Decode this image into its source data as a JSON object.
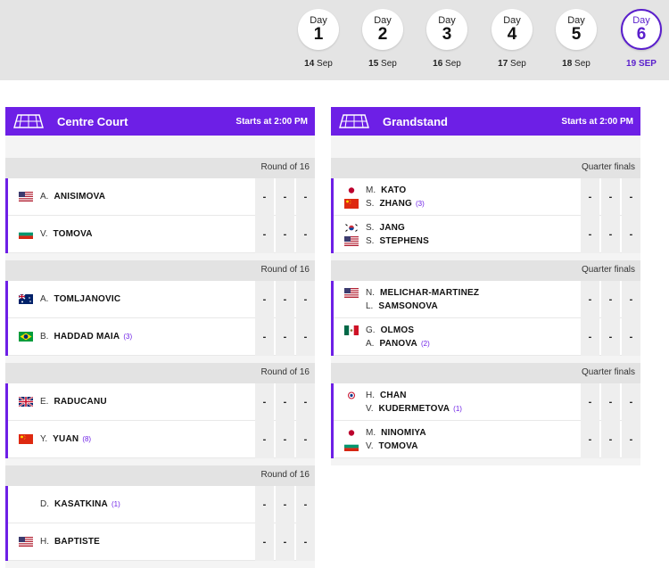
{
  "days": [
    {
      "label": "Day",
      "num": "1",
      "day": "14",
      "month": "Sep",
      "active": false
    },
    {
      "label": "Day",
      "num": "2",
      "day": "15",
      "month": "Sep",
      "active": false
    },
    {
      "label": "Day",
      "num": "3",
      "day": "16",
      "month": "Sep",
      "active": false
    },
    {
      "label": "Day",
      "num": "4",
      "day": "17",
      "month": "Sep",
      "active": false
    },
    {
      "label": "Day",
      "num": "5",
      "day": "18",
      "month": "Sep",
      "active": false
    },
    {
      "label": "Day",
      "num": "6",
      "day": "19",
      "month": "SEP",
      "active": true
    }
  ],
  "courts": [
    {
      "name": "Centre Court",
      "start": "Starts at 2:00 PM",
      "matches": [
        {
          "round": "Round of 16",
          "players": [
            {
              "rows": [
                {
                  "flag": "usa",
                  "init": "A.",
                  "name": "ANISIMOVA",
                  "seed": ""
                }
              ]
            },
            {
              "rows": [
                {
                  "flag": "bulgaria",
                  "init": "V.",
                  "name": "TOMOVA",
                  "seed": ""
                }
              ]
            }
          ],
          "scores": [
            [
              "-",
              "-",
              "-"
            ],
            [
              "-",
              "-",
              "-"
            ]
          ]
        },
        {
          "round": "Round of 16",
          "players": [
            {
              "rows": [
                {
                  "flag": "australia",
                  "init": "A.",
                  "name": "TOMLJANOVIC",
                  "seed": ""
                }
              ]
            },
            {
              "rows": [
                {
                  "flag": "brazil",
                  "init": "B.",
                  "name": "HADDAD MAIA",
                  "seed": "(3)"
                }
              ]
            }
          ],
          "scores": [
            [
              "-",
              "-",
              "-"
            ],
            [
              "-",
              "-",
              "-"
            ]
          ]
        },
        {
          "round": "Round of 16",
          "players": [
            {
              "rows": [
                {
                  "flag": "uk",
                  "init": "E.",
                  "name": "RADUCANU",
                  "seed": ""
                }
              ]
            },
            {
              "rows": [
                {
                  "flag": "china",
                  "init": "Y.",
                  "name": "YUAN",
                  "seed": "(8)"
                }
              ]
            }
          ],
          "scores": [
            [
              "-",
              "-",
              "-"
            ],
            [
              "-",
              "-",
              "-"
            ]
          ]
        },
        {
          "round": "Round of 16",
          "players": [
            {
              "rows": [
                {
                  "flag": "none",
                  "init": "D.",
                  "name": "KASATKINA",
                  "seed": "(1)"
                }
              ]
            },
            {
              "rows": [
                {
                  "flag": "usa",
                  "init": "H.",
                  "name": "BAPTISTE",
                  "seed": ""
                }
              ]
            }
          ],
          "scores": [
            [
              "-",
              "-",
              "-"
            ],
            [
              "-",
              "-",
              "-"
            ]
          ]
        }
      ]
    },
    {
      "name": "Grandstand",
      "start": "Starts at 2:00 PM",
      "matches": [
        {
          "round": "Quarter finals",
          "players": [
            {
              "rows": [
                {
                  "flag": "japan",
                  "init": "M.",
                  "name": "KATO",
                  "seed": ""
                },
                {
                  "flag": "china",
                  "init": "S.",
                  "name": "ZHANG",
                  "seed": "(3)"
                }
              ]
            },
            {
              "rows": [
                {
                  "flag": "korea",
                  "init": "S.",
                  "name": "JANG",
                  "seed": ""
                },
                {
                  "flag": "usa",
                  "init": "S.",
                  "name": "STEPHENS",
                  "seed": ""
                }
              ]
            }
          ],
          "scores": [
            [
              "-",
              "-",
              "-"
            ],
            [
              "-",
              "-",
              "-"
            ]
          ]
        },
        {
          "round": "Quarter finals",
          "players": [
            {
              "rows": [
                {
                  "flag": "usa",
                  "init": "N.",
                  "name": "MELICHAR-MARTINEZ",
                  "seed": ""
                },
                {
                  "flag": "none",
                  "init": "L.",
                  "name": "SAMSONOVA",
                  "seed": ""
                }
              ]
            },
            {
              "rows": [
                {
                  "flag": "mexico",
                  "init": "G.",
                  "name": "OLMOS",
                  "seed": ""
                },
                {
                  "flag": "none",
                  "init": "A.",
                  "name": "PANOVA",
                  "seed": "(2)"
                }
              ]
            }
          ],
          "scores": [
            [
              "-",
              "-",
              "-"
            ],
            [
              "-",
              "-",
              "-"
            ]
          ]
        },
        {
          "round": "Quarter finals",
          "players": [
            {
              "rows": [
                {
                  "flag": "taipei",
                  "init": "H.",
                  "name": "CHAN",
                  "seed": ""
                },
                {
                  "flag": "none",
                  "init": "V.",
                  "name": "KUDERMETOVA",
                  "seed": "(1)"
                }
              ]
            },
            {
              "rows": [
                {
                  "flag": "japan",
                  "init": "M.",
                  "name": "NINOMIYA",
                  "seed": ""
                },
                {
                  "flag": "bulgaria",
                  "init": "V.",
                  "name": "TOMOVA",
                  "seed": ""
                }
              ]
            }
          ],
          "scores": [
            [
              "-",
              "-",
              "-"
            ],
            [
              "-",
              "-",
              "-"
            ]
          ]
        }
      ]
    }
  ],
  "colors": {
    "accent": "#6d1fe6",
    "daybar": "#e4e4e4"
  }
}
